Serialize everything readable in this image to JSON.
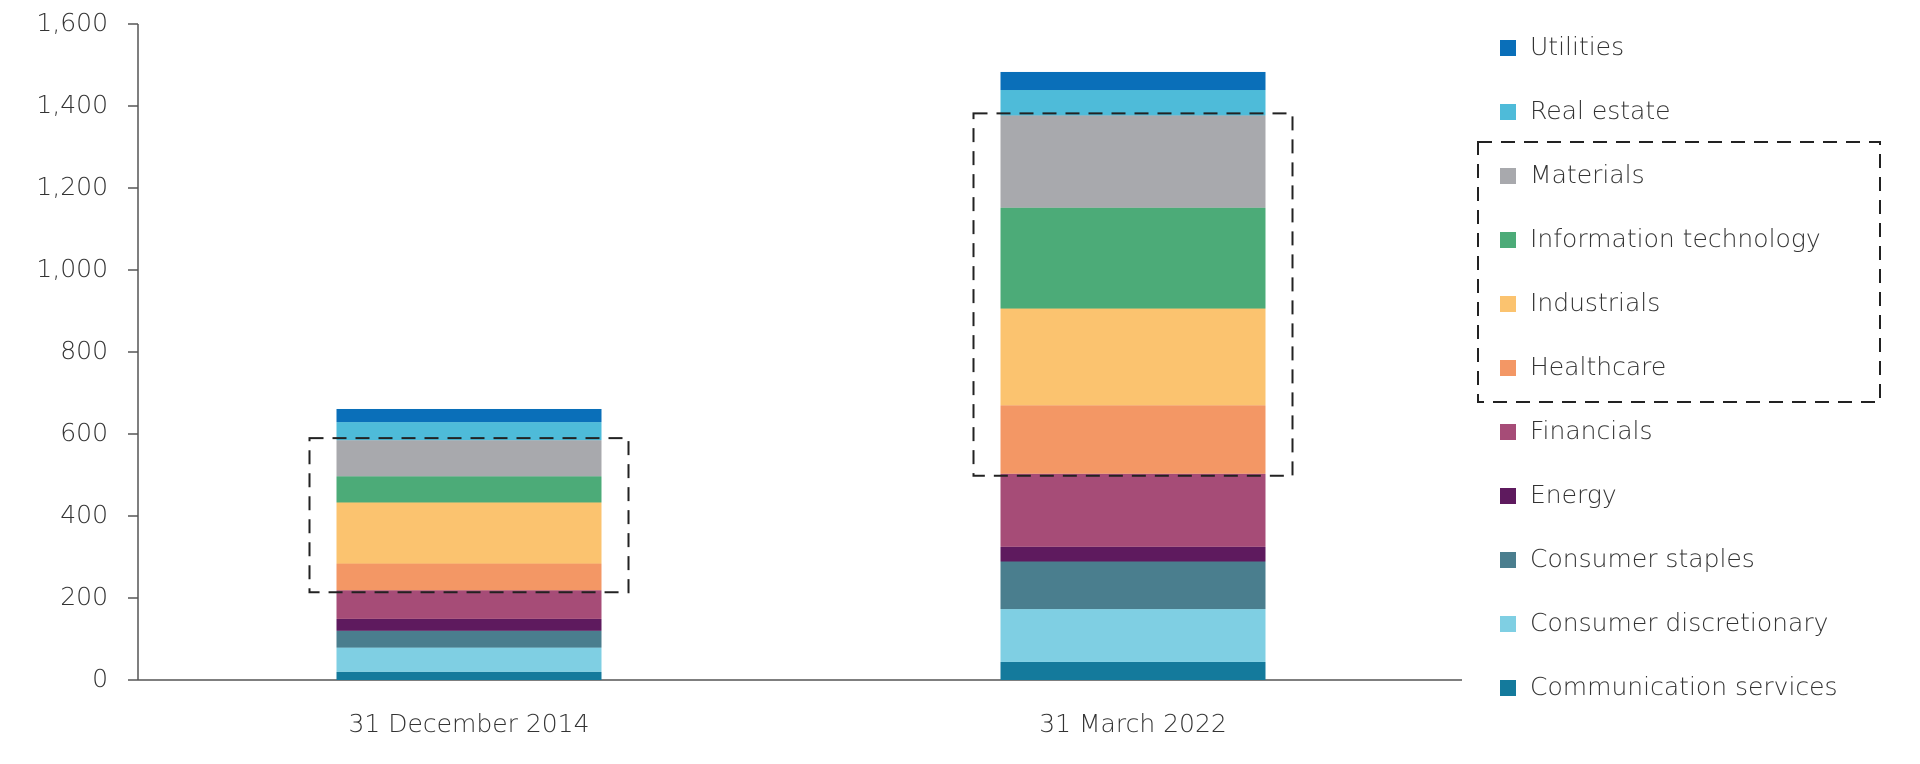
{
  "chart_data": {
    "type": "stacked_bar",
    "categories": [
      "31 December 2014",
      "31 March 2022"
    ],
    "series": [
      {
        "name": "Communication services",
        "color": "#147a9c",
        "values": [
          20,
          44
        ]
      },
      {
        "name": "Consumer discretionary",
        "color": "#7fcfe3",
        "values": [
          59,
          129
        ]
      },
      {
        "name": "Consumer staples",
        "color": "#4a7e8e",
        "values": [
          41,
          116
        ]
      },
      {
        "name": "Energy",
        "color": "#5e1a5e",
        "values": [
          29,
          36
        ]
      },
      {
        "name": "Financials",
        "color": "#a64c77",
        "values": [
          70,
          178
        ]
      },
      {
        "name": "Healthcare",
        "color": "#f39765",
        "values": [
          65,
          167
        ]
      },
      {
        "name": "Industrials",
        "color": "#fbc36f",
        "values": [
          149,
          236
        ]
      },
      {
        "name": "Information technology",
        "color": "#4cab78",
        "values": [
          64,
          246
        ]
      },
      {
        "name": "Materials",
        "color": "#a8a9ad",
        "values": [
          88,
          225
        ]
      },
      {
        "name": "Real estate",
        "color": "#4ebbd9",
        "values": [
          44,
          62
        ]
      },
      {
        "name": "Utilities",
        "color": "#0a6fb9",
        "values": [
          32,
          44
        ]
      }
    ],
    "ylim": [
      0,
      1600
    ],
    "yticks": [
      0,
      200,
      400,
      600,
      800,
      {
        "value": 1000,
        "label": "1,000"
      },
      {
        "value": 1200,
        "label": "1,200"
      },
      {
        "value": 1400,
        "label": "1,400"
      },
      {
        "value": 1600,
        "label": "1,600"
      }
    ]
  }
}
